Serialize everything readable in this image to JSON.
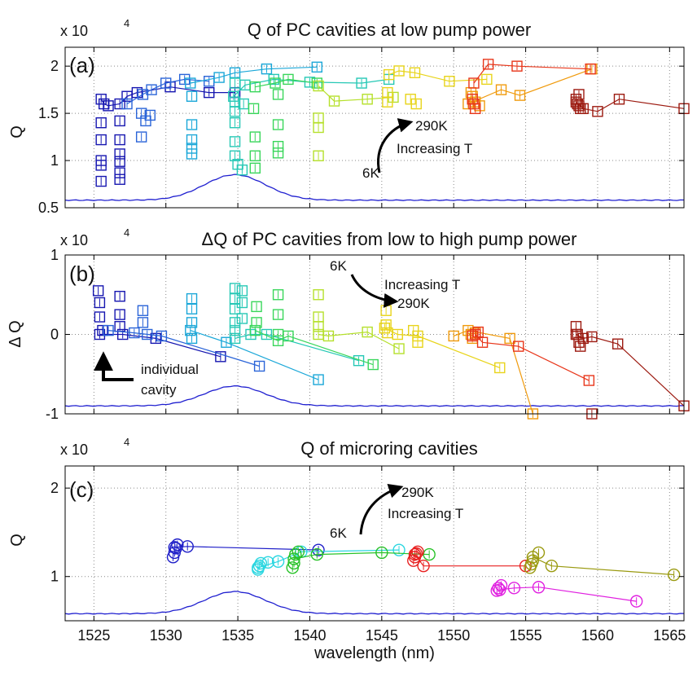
{
  "xlabel": "wavelength (nm)",
  "xlim": [
    1523,
    1566
  ],
  "xticks": [
    1525,
    1530,
    1535,
    1540,
    1545,
    1550,
    1555,
    1560,
    1565
  ],
  "grid": true,
  "chart_data": [
    {
      "type": "scatter",
      "panel_label": "(a)",
      "title": "Q of PC cavities at low pump power",
      "ylabel": "Q",
      "multiplier": "x 10",
      "multiplier_exp": "4",
      "ylim": [
        0.5,
        2.2
      ],
      "yticks": [
        0.5,
        1,
        1.5,
        2
      ],
      "yticklabels": [
        "0.5",
        "1",
        "1.5",
        "2"
      ],
      "annotations": [
        {
          "text": "290K",
          "x": 1550.0,
          "y": 1.3
        },
        {
          "text": "Increasing T",
          "x": 1551.0,
          "y": 1.07
        },
        {
          "text": "6K",
          "x": 1545.6,
          "y": 0.83
        }
      ],
      "series": [
        {
          "color": "#1515b0",
          "x": [
            1525.5,
            1525.7,
            1526.0,
            1526.8,
            1527.3,
            1528.0,
            1530.3,
            1533.0,
            1534.8
          ],
          "y": [
            1.65,
            1.6,
            1.58,
            1.6,
            1.68,
            1.72,
            1.78,
            1.72,
            1.72
          ],
          "scatter_x": [
            1525.5,
            1525.5,
            1525.5,
            1525.5,
            1525.5,
            1526.8,
            1526.8,
            1526.8,
            1526.8,
            1526.8,
            1526.8
          ],
          "scatter_y": [
            1.4,
            1.22,
            1.0,
            0.95,
            0.78,
            1.42,
            1.22,
            1.07,
            0.99,
            0.87,
            0.8
          ]
        },
        {
          "color": "#2a64d8",
          "x": [
            1527.3,
            1528.4,
            1529.0,
            1530.0,
            1531.3,
            1533.0
          ],
          "y": [
            1.6,
            1.7,
            1.75,
            1.82,
            1.86,
            1.84
          ],
          "scatter_x": [
            1528.3,
            1528.3,
            1528.6,
            1528.9
          ],
          "scatter_y": [
            1.5,
            1.25,
            1.42,
            1.48
          ]
        },
        {
          "color": "#1aa7d8",
          "x": [
            1531.7,
            1533.7,
            1534.8,
            1537.0,
            1540.5
          ],
          "y": [
            1.82,
            1.88,
            1.93,
            1.97,
            1.99
          ],
          "scatter_x": [
            1531.8,
            1531.8,
            1531.8,
            1531.8,
            1531.8
          ],
          "scatter_y": [
            1.68,
            1.38,
            1.22,
            1.13,
            1.07
          ]
        },
        {
          "color": "#25c8b5",
          "x": [
            1534.7,
            1535.5,
            1537.5,
            1540.0,
            1543.6,
            1545.5
          ],
          "y": [
            1.68,
            1.8,
            1.86,
            1.83,
            1.82,
            1.86
          ],
          "scatter_x": [
            1534.8,
            1534.8,
            1534.8,
            1534.8,
            1534.8,
            1534.8,
            1535.0,
            1535.3,
            1535.4
          ],
          "scatter_y": [
            1.82,
            1.62,
            1.52,
            1.4,
            1.2,
            1.05,
            0.96,
            0.9,
            1.6
          ]
        },
        {
          "color": "#38d65a",
          "x": [
            1536.2,
            1537.6,
            1538.5,
            1540.5
          ],
          "y": [
            1.78,
            1.82,
            1.86,
            1.82
          ],
          "scatter_x": [
            1536.1,
            1536.2,
            1536.2,
            1536.2,
            1537.8,
            1537.8,
            1537.8,
            1537.8
          ],
          "scatter_y": [
            1.55,
            1.25,
            1.05,
            0.92,
            1.7,
            1.38,
            1.15,
            1.08
          ]
        },
        {
          "color": "#b5e02b",
          "x": [
            1540.6,
            1541.7,
            1544.0,
            1545.8
          ],
          "y": [
            1.79,
            1.63,
            1.65,
            1.67
          ],
          "scatter_x": [
            1540.6,
            1540.6,
            1540.6
          ],
          "scatter_y": [
            1.45,
            1.35,
            1.05
          ]
        },
        {
          "color": "#e8d41a",
          "x": [
            1545.5,
            1546.2,
            1547.3,
            1549.7,
            1552.3
          ],
          "y": [
            1.91,
            1.95,
            1.93,
            1.84,
            1.86
          ],
          "scatter_x": [
            1545.4,
            1545.4,
            1547.0,
            1547.4
          ],
          "scatter_y": [
            1.72,
            1.62,
            1.65,
            1.6
          ]
        },
        {
          "color": "#f09a0c",
          "x": [
            1551.0,
            1553.3,
            1554.6,
            1559.6
          ],
          "y": [
            1.6,
            1.75,
            1.69,
            1.97
          ],
          "scatter_x": [
            1551.2,
            1551.3,
            1551.5,
            1551.8
          ],
          "scatter_y": [
            1.72,
            1.68,
            1.62,
            1.58
          ]
        },
        {
          "color": "#e8361a",
          "x": [
            1551.4,
            1552.4,
            1554.4,
            1559.5
          ],
          "y": [
            1.82,
            2.02,
            2.0,
            1.97
          ],
          "scatter_x": [
            1551.3,
            1551.4,
            1551.5
          ],
          "scatter_y": [
            1.65,
            1.6,
            1.55
          ]
        },
        {
          "color": "#9c1a10",
          "x": [
            1558.5,
            1559.0,
            1560.0,
            1561.5,
            1566.0
          ],
          "y": [
            1.62,
            1.55,
            1.52,
            1.65,
            1.55
          ],
          "scatter_x": [
            1558.5,
            1558.6,
            1558.7,
            1558.8,
            1558.7
          ],
          "scatter_y": [
            1.65,
            1.6,
            1.58,
            1.55,
            1.7
          ]
        }
      ],
      "reference_curve": {
        "color": "#2020d0",
        "baseline": 0.58,
        "peak": 0.85,
        "center": 1534.8,
        "width": 3.0
      }
    },
    {
      "type": "scatter",
      "panel_label": "(b)",
      "title": "ΔQ of PC cavities from low to high pump power",
      "ylabel": "Δ Q",
      "multiplier": "x 10",
      "multiplier_exp": "4",
      "ylim": [
        -1,
        1
      ],
      "yticks": [
        -1,
        0,
        1
      ],
      "yticklabels": [
        "-1",
        "0",
        "1"
      ],
      "annotations": [
        {
          "text": "6K",
          "x": 1541.3,
          "y": 0.72
        },
        {
          "text": "Increasing T",
          "x": 1544.6,
          "y": 0.4
        },
        {
          "text": "290K",
          "x": 1546.0,
          "y": 0.15
        },
        {
          "text": "individual",
          "x": 1529.3,
          "y": -0.56
        },
        {
          "text": "cavity",
          "x": 1529.3,
          "y": -0.83
        }
      ],
      "series": [
        {
          "color": "#1515b0",
          "x": [
            1525.4,
            1527.0,
            1529.3,
            1533.8
          ],
          "y": [
            0.0,
            0.0,
            -0.05,
            -0.28
          ],
          "scatter_x": [
            1525.3,
            1525.4,
            1525.4,
            1525.6,
            1526.8,
            1526.8,
            1526.8
          ],
          "scatter_y": [
            0.55,
            0.4,
            0.22,
            0.05,
            0.48,
            0.25,
            0.1
          ]
        },
        {
          "color": "#2a64d8",
          "x": [
            1526.0,
            1527.8,
            1529.7,
            1536.5
          ],
          "y": [
            0.05,
            0.02,
            -0.02,
            -0.4
          ],
          "scatter_x": [
            1528.4,
            1528.4,
            1528.7
          ],
          "scatter_y": [
            0.3,
            0.15,
            0.0
          ]
        },
        {
          "color": "#1aa7d8",
          "x": [
            1531.7,
            1534.2,
            1540.6
          ],
          "y": [
            0.05,
            -0.1,
            -0.57
          ],
          "scatter_x": [
            1531.8,
            1531.8,
            1531.8,
            1531.8
          ],
          "scatter_y": [
            0.45,
            0.32,
            0.15,
            -0.05
          ]
        },
        {
          "color": "#25c8b5",
          "x": [
            1534.8,
            1535.9,
            1537.0,
            1543.4
          ],
          "y": [
            -0.05,
            0.0,
            0.0,
            -0.33
          ],
          "scatter_x": [
            1534.8,
            1534.8,
            1534.8,
            1534.8,
            1534.8,
            1535.3,
            1535.3,
            1535.3
          ],
          "scatter_y": [
            0.58,
            0.45,
            0.32,
            0.15,
            0.05,
            0.55,
            0.4,
            0.2
          ]
        },
        {
          "color": "#38d65a",
          "x": [
            1536.2,
            1537.8,
            1538.5,
            1544.4
          ],
          "y": [
            0.05,
            -0.08,
            -0.02,
            -0.38
          ],
          "scatter_x": [
            1536.3,
            1536.3,
            1537.8,
            1537.8,
            1537.8
          ],
          "scatter_y": [
            0.35,
            0.15,
            0.5,
            0.25,
            0.0
          ]
        },
        {
          "color": "#b5e02b",
          "x": [
            1540.6,
            1541.3,
            1544.0,
            1546.2
          ],
          "y": [
            0.0,
            -0.02,
            0.03,
            -0.18
          ],
          "scatter_x": [
            1540.6,
            1540.6,
            1540.6
          ],
          "scatter_y": [
            0.5,
            0.22,
            0.1
          ]
        },
        {
          "color": "#e8d41a",
          "x": [
            1545.2,
            1546.1,
            1547.5,
            1553.2
          ],
          "y": [
            0.08,
            0.0,
            -0.02,
            -0.42
          ],
          "scatter_x": [
            1545.3,
            1545.3,
            1545.4,
            1547.2,
            1547.5
          ],
          "scatter_y": [
            0.3,
            0.12,
            0.02,
            0.05,
            -0.1
          ]
        },
        {
          "color": "#f09a0c",
          "x": [
            1550.0,
            1551.0,
            1553.9,
            1555.5
          ],
          "y": [
            -0.02,
            0.05,
            -0.05,
            -1.0
          ],
          "scatter_x": [
            1551.2,
            1551.3,
            1551.5
          ],
          "scatter_y": [
            0.0,
            -0.05,
            0.02
          ]
        },
        {
          "color": "#e8361a",
          "x": [
            1551.5,
            1552.0,
            1554.5,
            1559.4
          ],
          "y": [
            0.0,
            -0.1,
            -0.15,
            -0.58
          ],
          "scatter_x": [
            1551.3,
            1551.5,
            1551.7
          ],
          "scatter_y": [
            -0.02,
            0.0,
            0.03
          ]
        },
        {
          "color": "#9c1a10",
          "x": [
            1558.5,
            1559.0,
            1559.6,
            1561.4,
            1566.0
          ],
          "y": [
            0.0,
            -0.05,
            -0.03,
            -0.12,
            -0.9
          ],
          "scatter_x": [
            1558.5,
            1558.6,
            1558.7,
            1558.8,
            1559.6
          ],
          "scatter_y": [
            0.1,
            0.0,
            -0.1,
            -0.15,
            -1.0
          ]
        }
      ],
      "reference_curve": {
        "color": "#2020d0",
        "baseline": -0.9,
        "peak": -0.65,
        "center": 1534.8,
        "width": 3.0
      }
    },
    {
      "type": "scatter",
      "panel_label": "(c)",
      "title": "Q of microring cavities",
      "ylabel": "Q",
      "multiplier": "x 10",
      "multiplier_exp": "4",
      "ylim": [
        0.5,
        2.25
      ],
      "yticks": [
        1,
        2
      ],
      "yticklabels": [
        "1",
        "2"
      ],
      "annotations": [
        {
          "text": "290K",
          "x": 1546.8,
          "y": 1.72
        },
        {
          "text": "Increasing T",
          "x": 1546.6,
          "y": 1.5
        },
        {
          "text": "6K",
          "x": 1543.7,
          "y": 1.28
        }
      ],
      "series": [
        {
          "color": "#1e1ec8",
          "x": [
            1530.6,
            1531.5,
            1540.6
          ],
          "y": [
            1.33,
            1.34,
            1.3
          ],
          "scatter_x": [
            1530.5,
            1530.6,
            1530.7,
            1530.8
          ],
          "scatter_y": [
            1.22,
            1.27,
            1.32,
            1.36
          ]
        },
        {
          "color": "#2ad6e0",
          "x": [
            1536.4,
            1537.8,
            1539.4,
            1546.2
          ],
          "y": [
            1.1,
            1.17,
            1.28,
            1.3
          ],
          "scatter_x": [
            1536.4,
            1536.5,
            1536.6,
            1537.1
          ],
          "scatter_y": [
            1.08,
            1.12,
            1.15,
            1.16
          ]
        },
        {
          "color": "#28c228",
          "x": [
            1538.9,
            1540.5,
            1545.0,
            1548.3
          ],
          "y": [
            1.2,
            1.25,
            1.27,
            1.25
          ],
          "scatter_x": [
            1538.8,
            1538.9,
            1539.0,
            1539.2
          ],
          "scatter_y": [
            1.1,
            1.15,
            1.25,
            1.28
          ]
        },
        {
          "color": "#e82020",
          "x": [
            1547.3,
            1547.9,
            1555.0
          ],
          "y": [
            1.25,
            1.12,
            1.12
          ],
          "scatter_x": [
            1547.2,
            1547.3,
            1547.4,
            1547.5
          ],
          "scatter_y": [
            1.18,
            1.22,
            1.26,
            1.28
          ]
        },
        {
          "color": "#9a9a10",
          "x": [
            1555.5,
            1556.8,
            1565.3
          ],
          "y": [
            1.22,
            1.12,
            1.02
          ],
          "scatter_x": [
            1555.3,
            1555.4,
            1555.5,
            1555.9
          ],
          "scatter_y": [
            1.1,
            1.14,
            1.18,
            1.27
          ]
        },
        {
          "color": "#e020e0",
          "x": [
            1553.2,
            1554.2,
            1555.9,
            1562.7
          ],
          "y": [
            0.85,
            0.87,
            0.88,
            0.72
          ],
          "scatter_x": [
            1553.0,
            1553.1,
            1553.3
          ],
          "scatter_y": [
            0.84,
            0.87,
            0.9
          ]
        }
      ],
      "reference_curve": {
        "color": "#2020d0",
        "baseline": 0.58,
        "peak": 0.83,
        "center": 1534.8,
        "width": 3.0
      }
    }
  ]
}
